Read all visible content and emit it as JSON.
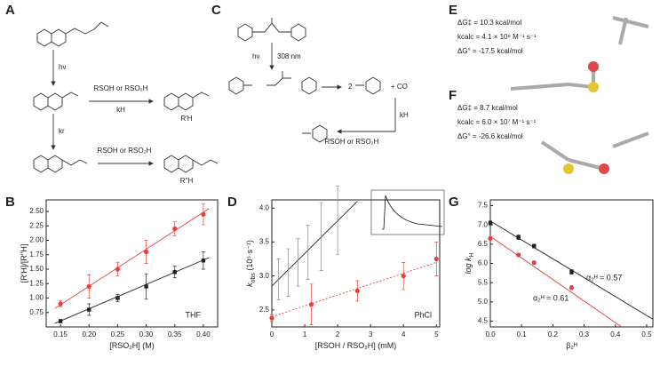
{
  "panels": {
    "A": "A",
    "B": "B",
    "C": "C",
    "D": "D",
    "E": "E",
    "F": "F",
    "G": "G"
  },
  "scheme_A": {
    "hv": "hν",
    "reagent1": "RSOH or RSO₂H",
    "kH": "kH",
    "kr": "kr",
    "product1": "R'H",
    "reagent2": "RSOH or RSO₂H",
    "product2": "R''H"
  },
  "scheme_C": {
    "hv": "hν",
    "wavelength": "308 nm",
    "coef": "2",
    "co": "+ CO",
    "reagent": "RSOH or RSO₂H",
    "kH": "kH"
  },
  "panel_E": {
    "dg_act": "ΔG‡ = 10.3 kcal/mol",
    "kcalc": "kcalc = 4.1 × 10⁸ M⁻¹ s⁻¹",
    "dg_rxn": "ΔG° = -17.5 kcal/mol"
  },
  "panel_F": {
    "dg_act": "ΔG‡ = 8.7 kcal/mol",
    "kcalc": "kcalc = 6.0 × 10⁷ M⁻¹ s⁻¹",
    "dg_rxn": "ΔG° = -26.6 kcal/mol"
  },
  "chart_data": [
    {
      "type": "scatter",
      "panel": "B",
      "xlabel": [
        "[RSO₂H] (M)"
      ],
      "ylabel": [
        "[R'H]/[R''H]"
      ],
      "annotations": [
        "THF"
      ],
      "xlim": [
        0.125,
        0.425
      ],
      "xticks": [
        0.15,
        {
          "value": 0.2,
          "label": "0.20"
        },
        0.25,
        {
          "value": 0.3,
          "label": "0.30"
        },
        0.35,
        {
          "value": 0.4,
          "label": "0.40"
        }
      ],
      "ylim": [
        0.5,
        2.7
      ],
      "yticks": [
        0.75,
        {
          "value": 1,
          "label": "1.00"
        },
        1.25,
        {
          "value": 1.5,
          "label": "1.50"
        },
        1.75,
        {
          "value": 2,
          "label": "2.00"
        },
        2.25,
        {
          "value": 2.5,
          "label": "2.50"
        }
      ],
      "series": [
        {
          "color": "#e5413c",
          "x": [
            0.15,
            0.2,
            0.25,
            0.3,
            0.35,
            0.4
          ],
          "values": [
            0.9,
            1.2,
            1.5,
            1.8,
            2.2,
            2.45
          ],
          "errors": [
            0.05,
            0.2,
            0.12,
            0.2,
            0.12,
            0.18
          ],
          "fit_x": [
            0.14,
            0.41
          ],
          "fit_y": [
            0.82,
            2.55
          ]
        },
        {
          "color": "#222222",
          "x": [
            0.15,
            0.2,
            0.25,
            0.3,
            0.35,
            0.4
          ],
          "values": [
            0.6,
            0.8,
            1.0,
            1.2,
            1.45,
            1.65
          ],
          "errors": [
            0.03,
            0.1,
            0.06,
            0.22,
            0.1,
            0.15
          ],
          "fit_x": [
            0.14,
            0.41
          ],
          "fit_y": [
            0.56,
            1.7
          ]
        }
      ]
    },
    {
      "type": "scatter",
      "panel": "D",
      "xlabel": [
        "[RSOH / RSO₂H] (mM)"
      ],
      "ylabel": [
        "k",
        "obs",
        " (10⁵ s⁻¹)"
      ],
      "annotations": [
        "PhCl"
      ],
      "xlim": [
        0,
        5.1
      ],
      "xticks": [
        0,
        1,
        2,
        3,
        4,
        5
      ],
      "ylim": [
        2.25,
        4.12
      ],
      "yticks": [
        2.5,
        {
          "value": 3,
          "label": "3.0"
        },
        3.5,
        {
          "value": 4,
          "label": "4.0"
        }
      ],
      "series": [
        {
          "color": "#222222",
          "x": [
            0.2,
            0.5,
            0.8,
            1.1,
            1.5,
            2.0
          ],
          "values": [
            2.95,
            3.05,
            3.2,
            3.35,
            3.58,
            3.82
          ],
          "errors": [
            0.3,
            0.35,
            0.35,
            0.4,
            0.5,
            0.5
          ],
          "fit_x": [
            0,
            2.6
          ],
          "fit_y": [
            2.85,
            4.1
          ]
        },
        {
          "color": "#e5413c",
          "x": [
            0,
            1.2,
            2.6,
            4.0,
            5.0
          ],
          "values": [
            2.38,
            2.58,
            2.78,
            3.0,
            3.25
          ],
          "errors": [
            0.05,
            0.3,
            0.15,
            0.2,
            0.25
          ],
          "fit_x": [
            0,
            5.0
          ],
          "fit_y": [
            2.4,
            3.2
          ],
          "dashed": true
        }
      ]
    },
    {
      "type": "scatter",
      "panel": "G",
      "xlabel": [
        "β₂ᴴ"
      ],
      "ylabel": [
        "log k",
        "H"
      ],
      "annotations": [
        "α₂ᴴ = 0.57",
        "α₂ᴴ = 0.61"
      ],
      "xlim": [
        0,
        0.52
      ],
      "xticks": [
        {
          "value": 0,
          "label": "0.0"
        },
        0.1,
        0.2,
        0.3,
        0.4,
        0.5
      ],
      "ylim": [
        4.35,
        7.65
      ],
      "yticks": [
        4.5,
        {
          "value": 5,
          "label": "5.0"
        },
        5.5,
        {
          "value": 6,
          "label": "6.0"
        },
        6.5,
        {
          "value": 7,
          "label": "7.0"
        },
        7.5
      ],
      "series": [
        {
          "color": "#222222",
          "x": [
            0,
            0.09,
            0.14,
            0.26
          ],
          "values": [
            7.05,
            6.68,
            6.45,
            5.78
          ],
          "errors": [
            0.05,
            0.06,
            0.05,
            0.06
          ],
          "fit_x": [
            0,
            0.52
          ],
          "fit_y": [
            7.1,
            4.55
          ]
        },
        {
          "color": "#e5413c",
          "x": [
            0,
            0.09,
            0.14,
            0.26
          ],
          "values": [
            6.65,
            6.22,
            6.02,
            5.37
          ],
          "errors": [
            0.04,
            0.04,
            0.04,
            0.05
          ],
          "fit_x": [
            0,
            0.42
          ],
          "fit_y": [
            6.7,
            4.35
          ]
        }
      ]
    }
  ]
}
